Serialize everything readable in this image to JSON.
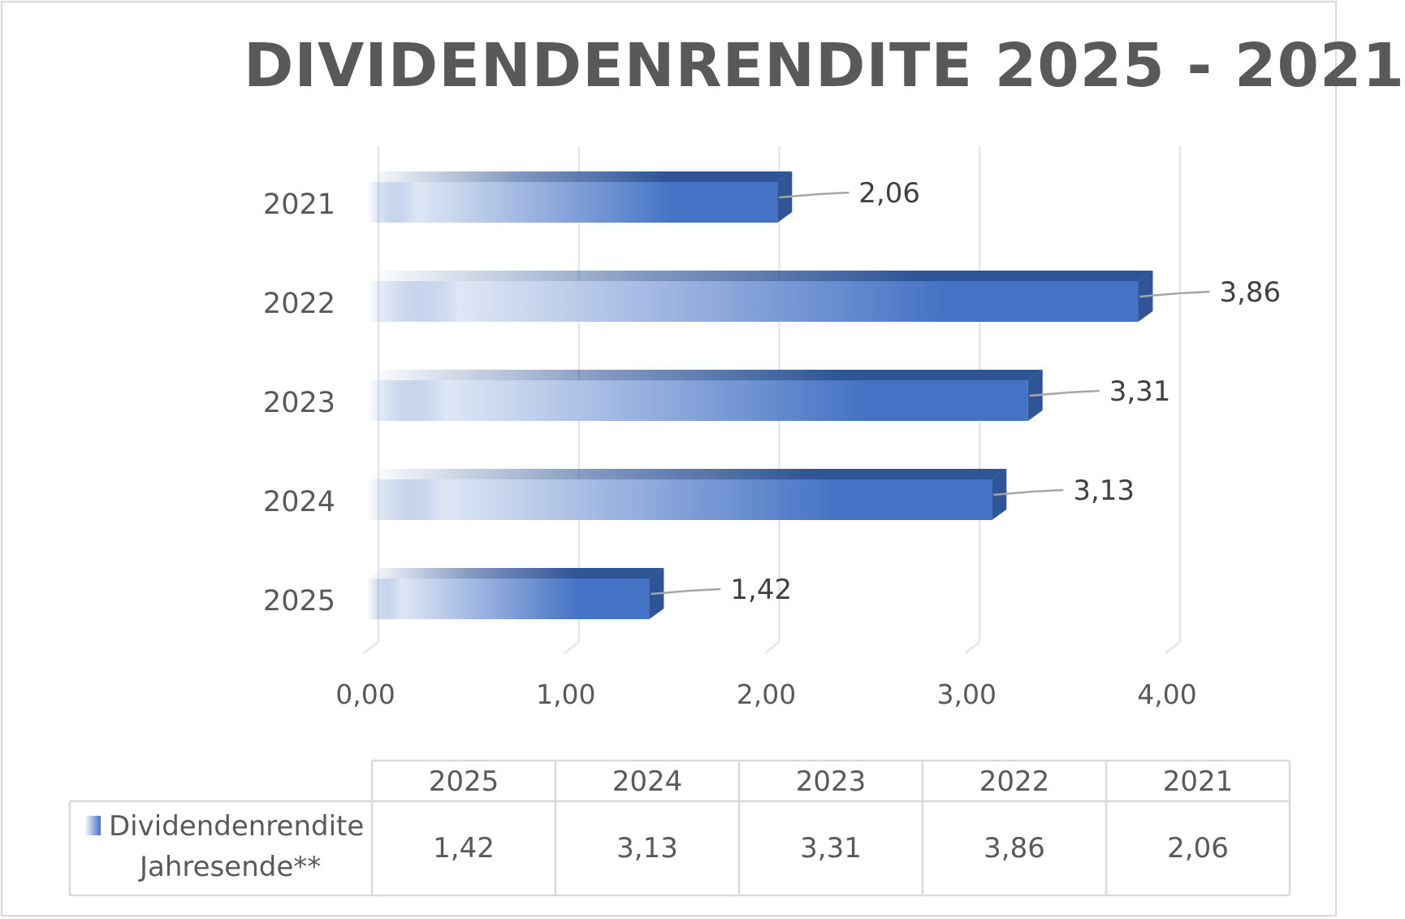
{
  "chart_data": {
    "type": "bar",
    "orientation": "horizontal",
    "title": "DIVIDENDENRENDITE 2025 - 2021",
    "categories": [
      "2025",
      "2024",
      "2023",
      "2022",
      "2021"
    ],
    "series": [
      {
        "name": "Dividendenrendite Jahresende**",
        "values": [
          1.42,
          3.13,
          3.31,
          3.86,
          2.06
        ]
      }
    ],
    "data_labels": [
      "1,42",
      "3,13",
      "3,31",
      "3,86",
      "2,06"
    ],
    "xlim": [
      0,
      4
    ],
    "x_ticks": [
      "0,00",
      "1,00",
      "2,00",
      "3,00",
      "4,00"
    ],
    "grid": true,
    "legend": "data table below chart",
    "colors": {
      "bar": "#4472c4",
      "bar_dark": "#2f5597",
      "text": "#595959",
      "grid": "#e6e6e6"
    }
  },
  "data_table": {
    "headers": [
      "2025",
      "2024",
      "2023",
      "2022",
      "2021"
    ],
    "row_label_line1": "Dividendenrendite",
    "row_label_line2": "Jahresende**",
    "values": [
      "1,42",
      "3,13",
      "3,31",
      "3,86",
      "2,06"
    ]
  }
}
